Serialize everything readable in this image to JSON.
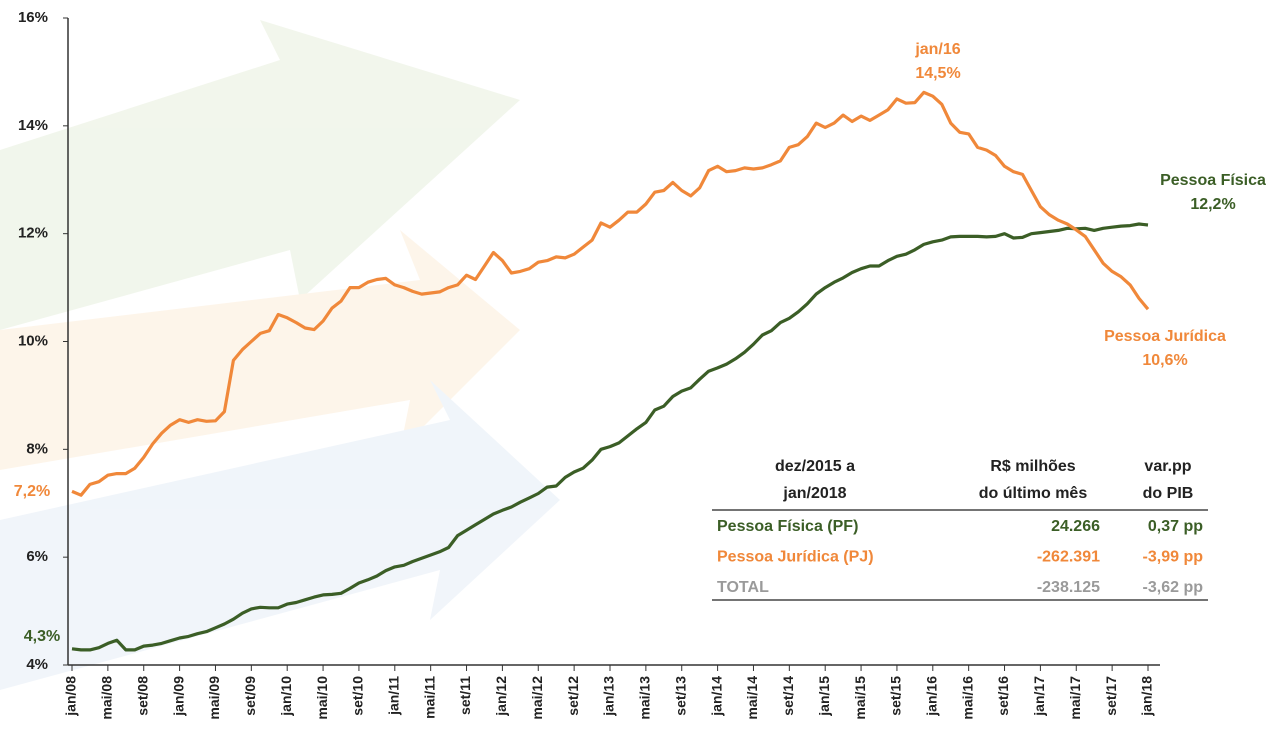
{
  "chart_data": {
    "type": "line",
    "categories": [
      "jan/08",
      null,
      null,
      null,
      "mai/08",
      null,
      null,
      null,
      "set/08",
      null,
      null,
      null,
      "jan/09",
      null,
      null,
      null,
      "mai/09",
      null,
      null,
      null,
      "set/09",
      null,
      null,
      null,
      "jan/10",
      null,
      null,
      null,
      "mai/10",
      null,
      null,
      null,
      "set/10",
      null,
      null,
      null,
      "jan/11",
      null,
      null,
      null,
      "mai/11",
      null,
      null,
      null,
      "set/11",
      null,
      null,
      null,
      "jan/12",
      null,
      null,
      null,
      "mai/12",
      null,
      null,
      null,
      "set/12",
      null,
      null,
      null,
      "jan/13",
      null,
      null,
      null,
      "mai/13",
      null,
      null,
      null,
      "set/13",
      null,
      null,
      null,
      "jan/14",
      null,
      null,
      null,
      "mai/14",
      null,
      null,
      null,
      "set/14",
      null,
      null,
      null,
      "jan/15",
      null,
      null,
      null,
      "mai/15",
      null,
      null,
      null,
      "set/15",
      null,
      null,
      null,
      "jan/16",
      null,
      null,
      null,
      "mai/16",
      null,
      null,
      null,
      "set/16",
      null,
      null,
      null,
      "jan/17",
      null,
      null,
      null,
      "mai/17",
      null,
      null,
      null,
      "set/17",
      null,
      null,
      null,
      "jan/18"
    ],
    "series": [
      {
        "name": "Pessoa Física",
        "color": "#3b5e26",
        "values": [
          4.3,
          4.28,
          4.28,
          4.32,
          4.4,
          4.46,
          4.28,
          4.28,
          4.35,
          4.37,
          4.4,
          4.45,
          4.5,
          4.53,
          4.58,
          4.62,
          4.69,
          4.76,
          4.85,
          4.96,
          5.04,
          5.07,
          5.06,
          5.06,
          5.13,
          5.16,
          5.21,
          5.26,
          5.3,
          5.31,
          5.33,
          5.42,
          5.52,
          5.58,
          5.65,
          5.75,
          5.82,
          5.85,
          5.92,
          5.98,
          6.04,
          6.1,
          6.18,
          6.4,
          6.5,
          6.6,
          6.7,
          6.8,
          6.87,
          6.93,
          7.02,
          7.1,
          7.18,
          7.3,
          7.32,
          7.48,
          7.58,
          7.65,
          7.8,
          8.0,
          8.05,
          8.12,
          8.25,
          8.38,
          8.5,
          8.73,
          8.8,
          8.98,
          9.08,
          9.14,
          9.3,
          9.45,
          9.51,
          9.58,
          9.68,
          9.8,
          9.95,
          10.12,
          10.2,
          10.35,
          10.43,
          10.55,
          10.7,
          10.88,
          11.0,
          11.1,
          11.18,
          11.28,
          11.35,
          11.4,
          11.4,
          11.5,
          11.58,
          11.62,
          11.7,
          11.8,
          11.85,
          11.88,
          11.94,
          11.95,
          11.95,
          11.95,
          11.94,
          11.95,
          12.0,
          11.92,
          11.93,
          12.0,
          12.02,
          12.04,
          12.06,
          12.1,
          12.09,
          12.1,
          12.06,
          12.1,
          12.12,
          12.14,
          12.15,
          12.18,
          12.16
        ]
      },
      {
        "name": "Pessoa Jurídica",
        "color": "#f0883a",
        "values": [
          7.22,
          7.15,
          7.35,
          7.4,
          7.52,
          7.55,
          7.55,
          7.65,
          7.85,
          8.1,
          8.3,
          8.45,
          8.55,
          8.5,
          8.55,
          8.52,
          8.53,
          8.7,
          9.65,
          9.85,
          10.0,
          10.15,
          10.2,
          10.5,
          10.44,
          10.35,
          10.25,
          10.22,
          10.38,
          10.62,
          10.75,
          11.0,
          11.0,
          11.1,
          11.15,
          11.17,
          11.05,
          11.0,
          10.93,
          10.88,
          10.9,
          10.92,
          11.0,
          11.05,
          11.23,
          11.15,
          11.4,
          11.65,
          11.5,
          11.27,
          11.3,
          11.35,
          11.47,
          11.5,
          11.57,
          11.55,
          11.62,
          11.75,
          11.88,
          12.2,
          12.12,
          12.25,
          12.4,
          12.4,
          12.55,
          12.77,
          12.8,
          12.95,
          12.8,
          12.7,
          12.85,
          13.17,
          13.25,
          13.15,
          13.17,
          13.22,
          13.2,
          13.22,
          13.28,
          13.35,
          13.6,
          13.65,
          13.8,
          14.05,
          13.97,
          14.05,
          14.2,
          14.08,
          14.18,
          14.1,
          14.2,
          14.3,
          14.5,
          14.42,
          14.43,
          14.62,
          14.55,
          14.4,
          14.05,
          13.88,
          13.85,
          13.6,
          13.55,
          13.45,
          13.25,
          13.15,
          13.1,
          12.8,
          12.5,
          12.35,
          12.25,
          12.18,
          12.07,
          11.95,
          11.7,
          11.45,
          11.3,
          11.2,
          11.05,
          10.8,
          10.6
        ]
      }
    ],
    "ylim": [
      4,
      16
    ],
    "yticks": [
      {
        "value": 4,
        "label": "4%"
      },
      {
        "value": 6,
        "label": "6%"
      },
      {
        "value": 8,
        "label": "8%"
      },
      {
        "value": 10,
        "label": "10%"
      },
      {
        "value": 12,
        "label": "12%"
      },
      {
        "value": 14,
        "label": "14%"
      },
      {
        "value": 16,
        "label": "16%"
      }
    ],
    "annotations": [
      {
        "lines": [
          "jan/16",
          "14,5%"
        ],
        "color": "#f0883a"
      },
      {
        "lines": [
          "Pessoa Física",
          "12,2%"
        ],
        "color": "#3b5e26"
      },
      {
        "lines": [
          "Pessoa Jurídica",
          "10,6%"
        ],
        "color": "#f0883a"
      },
      {
        "lines": [
          "7,2%"
        ],
        "color": "#f0883a"
      },
      {
        "lines": [
          "4,3%"
        ],
        "color": "#3b5e26"
      }
    ],
    "table": {
      "header": [
        [
          "dez/2015 a",
          "jan/2018"
        ],
        [
          "R$ milhões",
          "do último mês"
        ],
        [
          "var.pp",
          "do PIB"
        ]
      ],
      "rows": [
        {
          "cells": [
            "Pessoa Física (PF)",
            "24.266",
            "0,37 pp"
          ],
          "color": "#3b5e26"
        },
        {
          "cells": [
            "Pessoa Jurídica (PJ)",
            "-262.391",
            "-3,99 pp"
          ],
          "color": "#f0883a"
        },
        {
          "cells": [
            "TOTAL",
            "-238.125",
            "-3,62 pp"
          ],
          "color": "#9a9a9a"
        }
      ]
    }
  }
}
